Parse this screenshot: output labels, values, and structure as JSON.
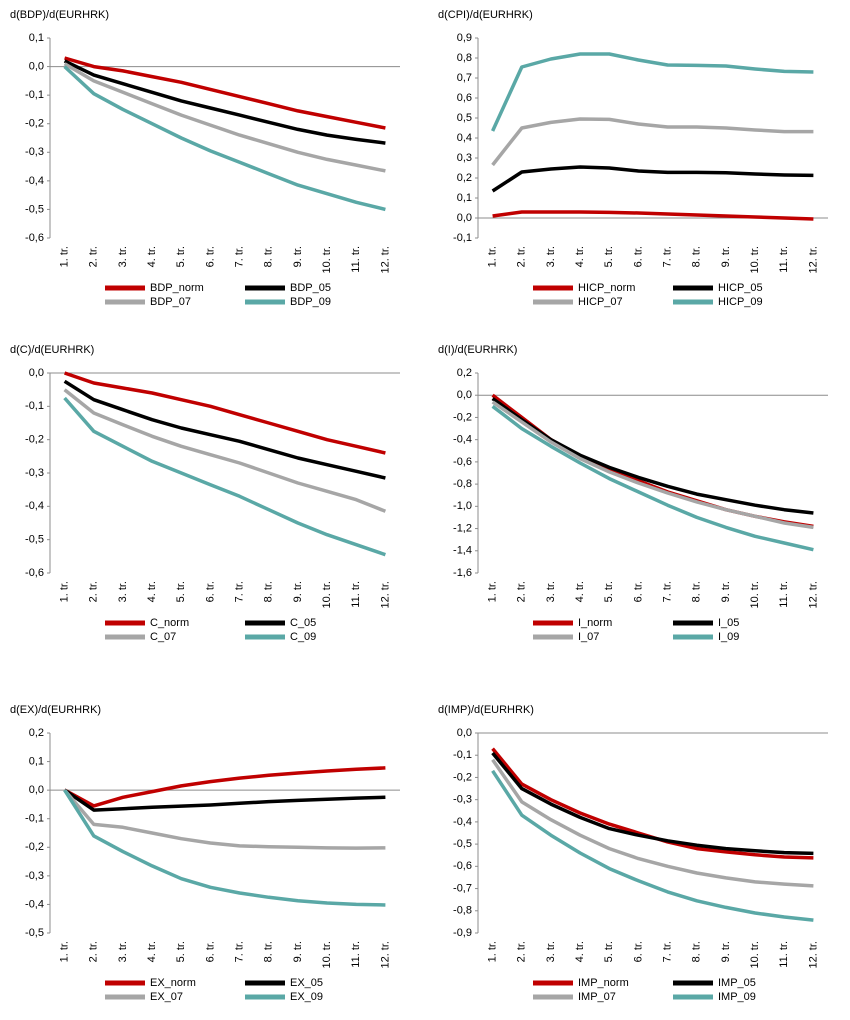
{
  "chart_data": [
    {
      "type": "line",
      "title": "d(BDP)/d(EURHRK)",
      "categories": [
        "1. tr.",
        "2. tr.",
        "3. tr.",
        "4. tr.",
        "5. tr.",
        "6. tr.",
        "7. tr.",
        "8. tr.",
        "9. tr.",
        "10. tr.",
        "11. tr.",
        "12. tr."
      ],
      "series": [
        {
          "name": "BDP_norm",
          "color": "#c00000",
          "values": [
            0.03,
            0.0,
            -0.015,
            -0.035,
            -0.055,
            -0.08,
            -0.105,
            -0.13,
            -0.155,
            -0.175,
            -0.195,
            -0.215
          ]
        },
        {
          "name": "BDP_05",
          "color": "#000000",
          "values": [
            0.02,
            -0.03,
            -0.06,
            -0.09,
            -0.12,
            -0.145,
            -0.17,
            -0.195,
            -0.22,
            -0.24,
            -0.255,
            -0.268
          ]
        },
        {
          "name": "BDP_07",
          "color": "#a6a6a6",
          "values": [
            0.01,
            -0.05,
            -0.09,
            -0.13,
            -0.17,
            -0.205,
            -0.24,
            -0.27,
            -0.3,
            -0.325,
            -0.345,
            -0.365
          ]
        },
        {
          "name": "BDP_09",
          "color": "#5aa8a6",
          "values": [
            0.0,
            -0.095,
            -0.15,
            -0.2,
            -0.25,
            -0.295,
            -0.335,
            -0.375,
            -0.415,
            -0.445,
            -0.475,
            -0.5
          ]
        }
      ],
      "ylim": [
        -0.6,
        0.1
      ],
      "yticks": [
        {
          "value": 0.1,
          "label": "0,1"
        },
        {
          "value": 0,
          "label": "0,0"
        },
        {
          "value": -0.1,
          "label": "-0,1"
        },
        {
          "value": -0.2,
          "label": "-0,2"
        },
        {
          "value": -0.3,
          "label": "-0,3"
        },
        {
          "value": -0.4,
          "label": "-0,4"
        },
        {
          "value": -0.5,
          "label": "-0,5"
        },
        {
          "value": -0.6,
          "label": "-0,6"
        }
      ]
    },
    {
      "type": "line",
      "title": "d(CPI)/d(EURHRK)",
      "categories": [
        "1. tr.",
        "2. tr.",
        "3. tr.",
        "4. tr.",
        "5. tr.",
        "6. tr.",
        "7. tr.",
        "8. tr.",
        "9. tr.",
        "10. tr.",
        "11. tr.",
        "12. tr."
      ],
      "series": [
        {
          "name": "HICP_norm",
          "color": "#c00000",
          "values": [
            0.01,
            0.03,
            0.03,
            0.03,
            0.028,
            0.025,
            0.02,
            0.015,
            0.01,
            0.005,
            0.0,
            -0.005
          ]
        },
        {
          "name": "HICP_05",
          "color": "#000000",
          "values": [
            0.135,
            0.23,
            0.245,
            0.255,
            0.25,
            0.235,
            0.228,
            0.228,
            0.226,
            0.22,
            0.215,
            0.213
          ]
        },
        {
          "name": "HICP_07",
          "color": "#a6a6a6",
          "values": [
            0.265,
            0.45,
            0.478,
            0.495,
            0.493,
            0.47,
            0.455,
            0.455,
            0.45,
            0.44,
            0.432,
            0.432
          ]
        },
        {
          "name": "HICP_09",
          "color": "#5aa8a6",
          "values": [
            0.435,
            0.755,
            0.795,
            0.82,
            0.82,
            0.79,
            0.765,
            0.763,
            0.76,
            0.745,
            0.733,
            0.73
          ]
        }
      ],
      "ylim": [
        -0.1,
        0.9
      ],
      "yticks": [
        {
          "value": 0.9,
          "label": "0,9"
        },
        {
          "value": 0.8,
          "label": "0,8"
        },
        {
          "value": 0.7,
          "label": "0,7"
        },
        {
          "value": 0.6,
          "label": "0,6"
        },
        {
          "value": 0.5,
          "label": "0,5"
        },
        {
          "value": 0.4,
          "label": "0,4"
        },
        {
          "value": 0.3,
          "label": "0,3"
        },
        {
          "value": 0.2,
          "label": "0,2"
        },
        {
          "value": 0.1,
          "label": "0,1"
        },
        {
          "value": 0,
          "label": "0,0"
        },
        {
          "value": -0.1,
          "label": "-0,1"
        }
      ]
    },
    {
      "type": "line",
      "title": "d(C)/d(EURHRK)",
      "categories": [
        "1. tr.",
        "2. tr.",
        "3. tr.",
        "4. tr.",
        "5. tr.",
        "6. tr.",
        "7. tr.",
        "8. tr.",
        "9. tr.",
        "10. tr.",
        "11. tr.",
        "12. tr."
      ],
      "series": [
        {
          "name": "C_norm",
          "color": "#c00000",
          "values": [
            0.0,
            -0.03,
            -0.045,
            -0.06,
            -0.08,
            -0.1,
            -0.125,
            -0.15,
            -0.175,
            -0.2,
            -0.22,
            -0.24
          ]
        },
        {
          "name": "C_05",
          "color": "#000000",
          "values": [
            -0.025,
            -0.08,
            -0.11,
            -0.14,
            -0.165,
            -0.185,
            -0.205,
            -0.23,
            -0.255,
            -0.275,
            -0.295,
            -0.315
          ]
        },
        {
          "name": "C_07",
          "color": "#a6a6a6",
          "values": [
            -0.05,
            -0.12,
            -0.155,
            -0.19,
            -0.22,
            -0.245,
            -0.27,
            -0.3,
            -0.33,
            -0.355,
            -0.38,
            -0.415
          ]
        },
        {
          "name": "C_09",
          "color": "#5aa8a6",
          "values": [
            -0.075,
            -0.175,
            -0.22,
            -0.265,
            -0.3,
            -0.335,
            -0.37,
            -0.41,
            -0.45,
            -0.485,
            -0.515,
            -0.545
          ]
        }
      ],
      "ylim": [
        -0.6,
        0.0
      ],
      "yticks": [
        {
          "value": 0,
          "label": "0,0"
        },
        {
          "value": -0.1,
          "label": "-0,1"
        },
        {
          "value": -0.2,
          "label": "-0,2"
        },
        {
          "value": -0.3,
          "label": "-0,3"
        },
        {
          "value": -0.4,
          "label": "-0,4"
        },
        {
          "value": -0.5,
          "label": "-0,5"
        },
        {
          "value": -0.6,
          "label": "-0,6"
        }
      ]
    },
    {
      "type": "line",
      "title": "d(I)/d(EURHRK)",
      "categories": [
        "1. tr.",
        "2. tr.",
        "3. tr.",
        "4. tr.",
        "5. tr.",
        "6. tr.",
        "7. tr.",
        "8. tr.",
        "9. tr.",
        "10. tr.",
        "11. tr.",
        "12. tr."
      ],
      "series": [
        {
          "name": "I_norm",
          "color": "#c00000",
          "values": [
            0.0,
            -0.2,
            -0.4,
            -0.55,
            -0.67,
            -0.77,
            -0.87,
            -0.95,
            -1.03,
            -1.09,
            -1.14,
            -1.18
          ]
        },
        {
          "name": "I_05",
          "color": "#000000",
          "values": [
            -0.03,
            -0.22,
            -0.4,
            -0.54,
            -0.65,
            -0.74,
            -0.82,
            -0.89,
            -0.94,
            -0.99,
            -1.03,
            -1.06
          ]
        },
        {
          "name": "I_07",
          "color": "#a6a6a6",
          "values": [
            -0.06,
            -0.24,
            -0.42,
            -0.57,
            -0.69,
            -0.79,
            -0.88,
            -0.96,
            -1.03,
            -1.09,
            -1.15,
            -1.19
          ]
        },
        {
          "name": "I_09",
          "color": "#5aa8a6",
          "values": [
            -0.1,
            -0.3,
            -0.46,
            -0.61,
            -0.75,
            -0.87,
            -0.99,
            -1.1,
            -1.19,
            -1.27,
            -1.33,
            -1.39
          ]
        }
      ],
      "ylim": [
        -1.6,
        0.2
      ],
      "yticks": [
        {
          "value": 0.2,
          "label": "0,2"
        },
        {
          "value": 0,
          "label": "0,0"
        },
        {
          "value": -0.2,
          "label": "-0,2"
        },
        {
          "value": -0.4,
          "label": "-0,4"
        },
        {
          "value": -0.6,
          "label": "-0,6"
        },
        {
          "value": -0.8,
          "label": "-0,8"
        },
        {
          "value": -1.0,
          "label": "-1,0"
        },
        {
          "value": -1.2,
          "label": "-1,2"
        },
        {
          "value": -1.4,
          "label": "-1,4"
        },
        {
          "value": -1.6,
          "label": "-1,6"
        }
      ]
    },
    {
      "type": "line",
      "title": "d(EX)/d(EURHRK)",
      "categories": [
        "1. tr.",
        "2. tr.",
        "3. tr.",
        "4. tr.",
        "5. tr.",
        "6. tr.",
        "7. tr.",
        "8. tr.",
        "9. tr.",
        "10. tr.",
        "11. tr.",
        "12. tr."
      ],
      "series": [
        {
          "name": "EX_norm",
          "color": "#c00000",
          "values": [
            0.0,
            -0.055,
            -0.025,
            -0.005,
            0.015,
            0.03,
            0.042,
            0.052,
            0.06,
            0.067,
            0.073,
            0.078
          ]
        },
        {
          "name": "EX_05",
          "color": "#000000",
          "values": [
            0.0,
            -0.07,
            -0.065,
            -0.06,
            -0.056,
            -0.052,
            -0.046,
            -0.04,
            -0.036,
            -0.032,
            -0.028,
            -0.025
          ]
        },
        {
          "name": "EX_07",
          "color": "#a6a6a6",
          "values": [
            0.0,
            -0.12,
            -0.13,
            -0.15,
            -0.17,
            -0.185,
            -0.195,
            -0.198,
            -0.2,
            -0.202,
            -0.203,
            -0.202
          ]
        },
        {
          "name": "EX_09",
          "color": "#5aa8a6",
          "values": [
            0.0,
            -0.16,
            -0.215,
            -0.265,
            -0.31,
            -0.34,
            -0.36,
            -0.375,
            -0.387,
            -0.395,
            -0.4,
            -0.402
          ]
        }
      ],
      "ylim": [
        -0.5,
        0.2
      ],
      "yticks": [
        {
          "value": 0.2,
          "label": "0,2"
        },
        {
          "value": 0.1,
          "label": "0,1"
        },
        {
          "value": 0,
          "label": "0,0"
        },
        {
          "value": -0.1,
          "label": "-0,1"
        },
        {
          "value": -0.2,
          "label": "-0,2"
        },
        {
          "value": -0.3,
          "label": "-0,3"
        },
        {
          "value": -0.4,
          "label": "-0,4"
        },
        {
          "value": -0.5,
          "label": "-0,5"
        }
      ]
    },
    {
      "type": "line",
      "title": "d(IMP)/d(EURHRK)",
      "categories": [
        "1. tr.",
        "2. tr.",
        "3. tr.",
        "4. tr.",
        "5. tr.",
        "6. tr.",
        "7. tr.",
        "8. tr.",
        "9. tr.",
        "10. tr.",
        "11. tr.",
        "12. tr."
      ],
      "series": [
        {
          "name": "IMP_norm",
          "color": "#c00000",
          "values": [
            -0.07,
            -0.23,
            -0.3,
            -0.36,
            -0.41,
            -0.45,
            -0.49,
            -0.52,
            -0.535,
            -0.548,
            -0.558,
            -0.562
          ]
        },
        {
          "name": "IMP_05",
          "color": "#000000",
          "values": [
            -0.09,
            -0.25,
            -0.32,
            -0.38,
            -0.43,
            -0.46,
            -0.485,
            -0.505,
            -0.52,
            -0.53,
            -0.538,
            -0.542
          ]
        },
        {
          "name": "IMP_07",
          "color": "#a6a6a6",
          "values": [
            -0.12,
            -0.31,
            -0.39,
            -0.46,
            -0.52,
            -0.565,
            -0.6,
            -0.63,
            -0.652,
            -0.67,
            -0.68,
            -0.688
          ]
        },
        {
          "name": "IMP_09",
          "color": "#5aa8a6",
          "values": [
            -0.17,
            -0.37,
            -0.46,
            -0.54,
            -0.61,
            -0.665,
            -0.715,
            -0.755,
            -0.785,
            -0.81,
            -0.828,
            -0.842
          ]
        }
      ],
      "ylim": [
        -0.9,
        0.0
      ],
      "yticks": [
        {
          "value": 0,
          "label": "0,0"
        },
        {
          "value": -0.1,
          "label": "-0,1"
        },
        {
          "value": -0.2,
          "label": "-0,2"
        },
        {
          "value": -0.3,
          "label": "-0,3"
        },
        {
          "value": -0.4,
          "label": "-0,4"
        },
        {
          "value": -0.5,
          "label": "-0,5"
        },
        {
          "value": -0.6,
          "label": "-0,6"
        },
        {
          "value": -0.7,
          "label": "-0,7"
        },
        {
          "value": -0.8,
          "label": "-0,8"
        },
        {
          "value": -0.9,
          "label": "-0,9"
        }
      ]
    }
  ]
}
